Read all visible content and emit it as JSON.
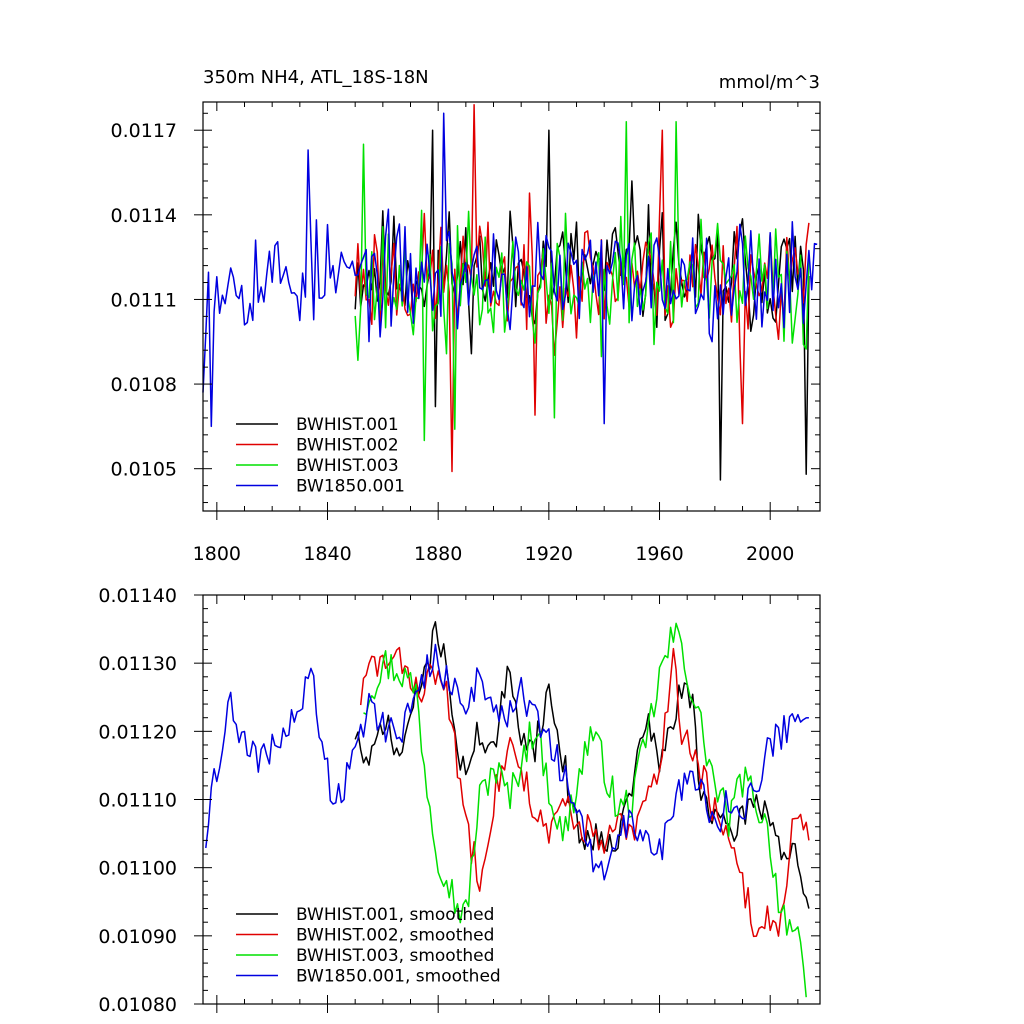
{
  "chart_data": [
    {
      "type": "line",
      "title": "350m NH4, ATL_18S-18N",
      "units_label": "mmol/m^3",
      "xlim": [
        1795,
        2018
      ],
      "ylim": [
        0.01035,
        0.0118
      ],
      "x_ticks": [
        1800,
        1840,
        1880,
        1920,
        1960,
        2000
      ],
      "y_ticks": [
        {
          "value": 0.0105,
          "label": "0.0105"
        },
        {
          "value": 0.0108,
          "label": "0.0108"
        },
        {
          "value": 0.0111,
          "label": "0.0111"
        },
        {
          "value": 0.0114,
          "label": "0.0114"
        },
        {
          "value": 0.0117,
          "label": "0.0117"
        }
      ],
      "legend_position": "bottom-left",
      "series": [
        {
          "name": "BWHIST.001",
          "color": "#000000",
          "start": 1850,
          "end": 2014,
          "seed": 11,
          "mean": 0.0112,
          "noise": 0.0002,
          "lows": [
            [
              1879,
              0.01072
            ],
            [
              1982,
              0.01046
            ],
            [
              2013,
              0.01048
            ]
          ],
          "highs": [
            [
              1878,
              0.0117
            ],
            [
              1920,
              0.0117
            ],
            [
              1950,
              0.01152
            ]
          ]
        },
        {
          "name": "BWHIST.002",
          "color": "#e00000",
          "start": 1850,
          "end": 2014,
          "seed": 23,
          "mean": 0.01118,
          "noise": 0.0002,
          "lows": [
            [
              1885,
              0.01049
            ],
            [
              1915,
              0.01069
            ],
            [
              1990,
              0.01066
            ]
          ],
          "highs": [
            [
              1893,
              0.01179
            ],
            [
              1961,
              0.0117
            ]
          ]
        },
        {
          "name": "BWHIST.003",
          "color": "#00e000",
          "start": 1850,
          "end": 2014,
          "seed": 37,
          "mean": 0.01115,
          "noise": 0.00022,
          "lows": [
            [
              1875,
              0.0106
            ],
            [
              1886,
              0.01064
            ],
            [
              1922,
              0.01068
            ]
          ],
          "highs": [
            [
              1853,
              0.01165
            ],
            [
              1948,
              0.01173
            ],
            [
              1966,
              0.01173
            ]
          ]
        },
        {
          "name": "BW1850.001",
          "color": "#0000e0",
          "start": 1795,
          "end": 2017,
          "seed": 53,
          "mean": 0.01118,
          "noise": 0.00018,
          "lows": [
            [
              1795,
              0.01077
            ],
            [
              1798,
              0.01065
            ],
            [
              1940,
              0.01066
            ]
          ],
          "highs": [
            [
              1833,
              0.01163
            ],
            [
              1882,
              0.01176
            ]
          ]
        }
      ]
    },
    {
      "type": "line",
      "xlim": [
        1795,
        2018
      ],
      "ylim": [
        0.0108,
        0.0114
      ],
      "x_ticks": [
        1800,
        1840,
        1880,
        1920,
        1960,
        2000
      ],
      "y_ticks": [
        {
          "value": 0.0108,
          "label": "0.01080"
        },
        {
          "value": 0.0109,
          "label": "0.01090"
        },
        {
          "value": 0.011,
          "label": "0.01100"
        },
        {
          "value": 0.0111,
          "label": "0.01110"
        },
        {
          "value": 0.0112,
          "label": "0.01120"
        },
        {
          "value": 0.0113,
          "label": "0.01130"
        },
        {
          "value": 0.0114,
          "label": "0.01140"
        }
      ],
      "show_x_labels": false,
      "legend_position": "bottom-left",
      "series": [
        {
          "name": "BWHIST.001, smoothed",
          "color": "#000000",
          "seed": 71,
          "noise": 2.5e-05,
          "anchors": [
            [
              1850,
              0.0112
            ],
            [
              1855,
              0.01114
            ],
            [
              1860,
              0.01122
            ],
            [
              1866,
              0.01116
            ],
            [
              1872,
              0.01125
            ],
            [
              1880,
              0.01135
            ],
            [
              1884,
              0.01128
            ],
            [
              1888,
              0.01113
            ],
            [
              1895,
              0.0112
            ],
            [
              1900,
              0.01117
            ],
            [
              1905,
              0.01128
            ],
            [
              1910,
              0.0112
            ],
            [
              1915,
              0.01118
            ],
            [
              1920,
              0.01126
            ],
            [
              1925,
              0.01116
            ],
            [
              1930,
              0.01106
            ],
            [
              1935,
              0.01104
            ],
            [
              1940,
              0.01105
            ],
            [
              1945,
              0.01104
            ],
            [
              1950,
              0.01112
            ],
            [
              1955,
              0.01122
            ],
            [
              1960,
              0.01115
            ],
            [
              1963,
              0.01119
            ],
            [
              1968,
              0.01126
            ],
            [
              1972,
              0.01124
            ],
            [
              1975,
              0.01111
            ],
            [
              1980,
              0.01108
            ],
            [
              1985,
              0.01104
            ],
            [
              1990,
              0.01108
            ],
            [
              1995,
              0.0111
            ],
            [
              2000,
              0.01108
            ],
            [
              2005,
              0.01101
            ],
            [
              2008,
              0.01104
            ],
            [
              2012,
              0.01094
            ],
            [
              2014,
              0.01094
            ]
          ]
        },
        {
          "name": "BWHIST.002, smoothed",
          "color": "#e00000",
          "seed": 83,
          "noise": 2.5e-05,
          "anchors": [
            [
              1852,
              0.01125
            ],
            [
              1856,
              0.0113
            ],
            [
              1862,
              0.0113
            ],
            [
              1868,
              0.0113
            ],
            [
              1872,
              0.01126
            ],
            [
              1878,
              0.01128
            ],
            [
              1882,
              0.01128
            ],
            [
              1888,
              0.01112
            ],
            [
              1892,
              0.01103
            ],
            [
              1895,
              0.01099
            ],
            [
              1900,
              0.0111
            ],
            [
              1905,
              0.01118
            ],
            [
              1910,
              0.01115
            ],
            [
              1915,
              0.01108
            ],
            [
              1920,
              0.01104
            ],
            [
              1925,
              0.0111
            ],
            [
              1930,
              0.01106
            ],
            [
              1935,
              0.01106
            ],
            [
              1940,
              0.01102
            ],
            [
              1945,
              0.01107
            ],
            [
              1950,
              0.01104
            ],
            [
              1955,
              0.0111
            ],
            [
              1960,
              0.01114
            ],
            [
              1965,
              0.01132
            ],
            [
              1968,
              0.0112
            ],
            [
              1972,
              0.01117
            ],
            [
              1976,
              0.01113
            ],
            [
              1980,
              0.01108
            ],
            [
              1985,
              0.01103
            ],
            [
              1990,
              0.01098
            ],
            [
              1995,
              0.0109
            ],
            [
              1999,
              0.01093
            ],
            [
              2004,
              0.01092
            ],
            [
              2008,
              0.01106
            ],
            [
              2011,
              0.01106
            ],
            [
              2014,
              0.01104
            ]
          ]
        },
        {
          "name": "BWHIST.003, smoothed",
          "color": "#00e000",
          "seed": 97,
          "noise": 2.8e-05,
          "anchors": [
            [
              1853,
              0.01124
            ],
            [
              1860,
              0.0113
            ],
            [
              1866,
              0.01129
            ],
            [
              1872,
              0.01126
            ],
            [
              1876,
              0.01112
            ],
            [
              1880,
              0.01102
            ],
            [
              1884,
              0.01098
            ],
            [
              1886,
              0.01095
            ],
            [
              1890,
              0.01093
            ],
            [
              1895,
              0.0111
            ],
            [
              1900,
              0.01115
            ],
            [
              1906,
              0.0111
            ],
            [
              1910,
              0.01116
            ],
            [
              1915,
              0.01121
            ],
            [
              1920,
              0.01112
            ],
            [
              1925,
              0.01104
            ],
            [
              1930,
              0.01112
            ],
            [
              1935,
              0.0112
            ],
            [
              1940,
              0.01115
            ],
            [
              1945,
              0.01108
            ],
            [
              1950,
              0.0111
            ],
            [
              1955,
              0.01118
            ],
            [
              1960,
              0.01128
            ],
            [
              1965,
              0.01134
            ],
            [
              1968,
              0.01133
            ],
            [
              1972,
              0.01125
            ],
            [
              1976,
              0.01119
            ],
            [
              1980,
              0.01112
            ],
            [
              1985,
              0.01107
            ],
            [
              1990,
              0.01113
            ],
            [
              1995,
              0.0111
            ],
            [
              2000,
              0.01104
            ],
            [
              2003,
              0.01095
            ],
            [
              2007,
              0.01092
            ],
            [
              2010,
              0.01089
            ],
            [
              2013,
              0.01081
            ]
          ]
        },
        {
          "name": "BW1850.001, smoothed",
          "color": "#0000e0",
          "seed": 109,
          "noise": 2.5e-05,
          "anchors": [
            [
              1796,
              0.01104
            ],
            [
              1798,
              0.01112
            ],
            [
              1802,
              0.01118
            ],
            [
              1805,
              0.01124
            ],
            [
              1810,
              0.01118
            ],
            [
              1815,
              0.01115
            ],
            [
              1820,
              0.01118
            ],
            [
              1826,
              0.0112
            ],
            [
              1830,
              0.01124
            ],
            [
              1835,
              0.01128
            ],
            [
              1838,
              0.01118
            ],
            [
              1842,
              0.0111
            ],
            [
              1846,
              0.01112
            ],
            [
              1850,
              0.01118
            ],
            [
              1855,
              0.01124
            ],
            [
              1860,
              0.01121
            ],
            [
              1866,
              0.0112
            ],
            [
              1872,
              0.01125
            ],
            [
              1878,
              0.01131
            ],
            [
              1884,
              0.01127
            ],
            [
              1890,
              0.01124
            ],
            [
              1895,
              0.01128
            ],
            [
              1900,
              0.01124
            ],
            [
              1905,
              0.01122
            ],
            [
              1910,
              0.01126
            ],
            [
              1915,
              0.01122
            ],
            [
              1920,
              0.01118
            ],
            [
              1925,
              0.01114
            ],
            [
              1930,
              0.01108
            ],
            [
              1935,
              0.01102
            ],
            [
              1940,
              0.01098
            ],
            [
              1945,
              0.01104
            ],
            [
              1950,
              0.01108
            ],
            [
              1955,
              0.01104
            ],
            [
              1960,
              0.01102
            ],
            [
              1965,
              0.01108
            ],
            [
              1970,
              0.01114
            ],
            [
              1975,
              0.01112
            ],
            [
              1980,
              0.01106
            ],
            [
              1985,
              0.0111
            ],
            [
              1990,
              0.01108
            ],
            [
              1995,
              0.01112
            ],
            [
              2000,
              0.01118
            ],
            [
              2005,
              0.0112
            ],
            [
              2010,
              0.01124
            ],
            [
              2014,
              0.01122
            ]
          ]
        }
      ]
    }
  ]
}
